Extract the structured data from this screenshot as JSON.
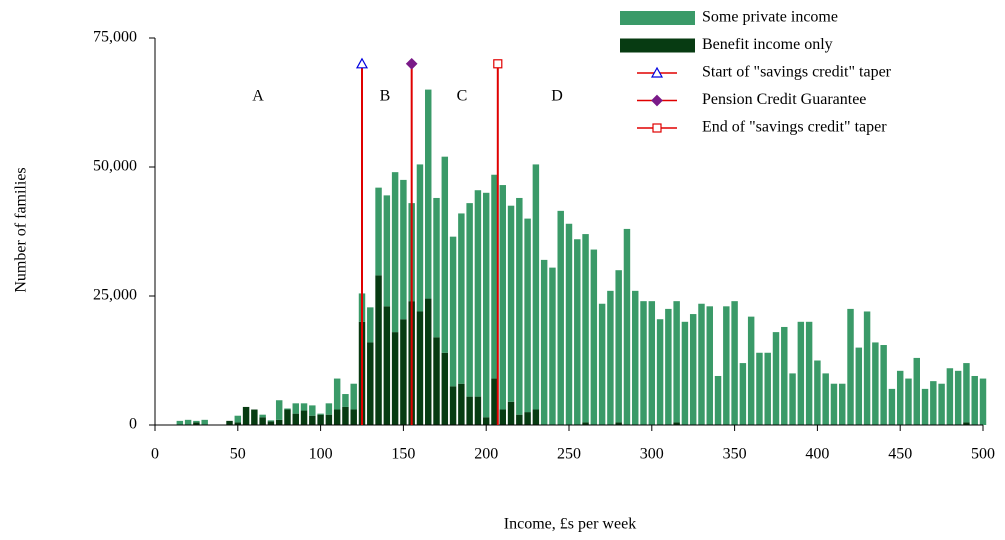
{
  "chart_data": {
    "type": "bar",
    "stacked": true,
    "x_label": "Income, £s per week",
    "y_label": "Number of families",
    "x": [
      15,
      20,
      25,
      30,
      35,
      40,
      45,
      50,
      55,
      60,
      65,
      70,
      75,
      80,
      85,
      90,
      95,
      100,
      105,
      110,
      115,
      120,
      125,
      130,
      135,
      140,
      145,
      150,
      155,
      160,
      165,
      170,
      175,
      180,
      185,
      190,
      195,
      200,
      205,
      210,
      215,
      220,
      225,
      230,
      235,
      240,
      245,
      250,
      255,
      260,
      265,
      270,
      275,
      280,
      285,
      290,
      295,
      300,
      305,
      310,
      315,
      320,
      325,
      330,
      335,
      340,
      345,
      350,
      355,
      360,
      365,
      370,
      375,
      380,
      385,
      390,
      395,
      400,
      405,
      410,
      415,
      420,
      425,
      430,
      435,
      440,
      445,
      450,
      455,
      460,
      465,
      470,
      475,
      480,
      485,
      490,
      495,
      500
    ],
    "series": [
      {
        "name": "Benefit income only",
        "color": "#073b12",
        "values": [
          0,
          0,
          500,
          0,
          0,
          0,
          800,
          500,
          3500,
          3000,
          1500,
          700,
          1000,
          3000,
          2200,
          2800,
          1800,
          2000,
          2000,
          3000,
          3500,
          3000,
          20000,
          16000,
          29000,
          23000,
          18000,
          20500,
          24000,
          22000,
          24500,
          17000,
          14000,
          7500,
          8000,
          5500,
          5500,
          1500,
          9000,
          3000,
          4500,
          2000,
          2500,
          3000,
          0,
          0,
          0,
          0,
          0,
          500,
          0,
          0,
          0,
          500,
          0,
          0,
          0,
          0,
          0,
          0,
          500,
          0,
          0,
          0,
          0,
          0,
          0,
          0,
          0,
          0,
          0,
          0,
          0,
          0,
          0,
          0,
          0,
          0,
          0,
          0,
          0,
          0,
          0,
          0,
          0,
          0,
          0,
          0,
          0,
          0,
          0,
          0,
          0,
          0,
          0,
          500,
          0,
          0
        ]
      },
      {
        "name": "Some private income",
        "color": "#3a9a68",
        "values": [
          800,
          1000,
          300,
          1000,
          0,
          0,
          0,
          1300,
          0,
          0,
          500,
          200,
          3800,
          200,
          2000,
          1400,
          2000,
          200,
          2200,
          6000,
          2500,
          5000,
          5500,
          6800,
          17000,
          21500,
          31000,
          27000,
          19000,
          28500,
          40500,
          27000,
          38000,
          29000,
          33000,
          37500,
          40000,
          43500,
          39500,
          43500,
          38000,
          42000,
          37500,
          47500,
          32000,
          30500,
          41500,
          39000,
          36000,
          36500,
          34000,
          23500,
          26000,
          29500,
          38000,
          26000,
          24000,
          24000,
          20500,
          22500,
          23500,
          20000,
          21500,
          23500,
          23000,
          9500,
          23000,
          24000,
          12000,
          21000,
          14000,
          14000,
          18000,
          19000,
          10000,
          20000,
          20000,
          12500,
          10000,
          8000,
          8000,
          22500,
          15000,
          22000,
          16000,
          15500,
          7000,
          10500,
          9000,
          13000,
          7000,
          8500,
          8000,
          11000,
          10500,
          11500,
          9500,
          9000
        ]
      }
    ],
    "markers": [
      {
        "name": "Start of \"savings credit\" taper",
        "color": "#e00000",
        "marker": "triangle",
        "marker_color": "#0000e0",
        "x": 125,
        "value": 70000
      },
      {
        "name": "Pension Credit Guarantee",
        "color": "#e00000",
        "marker": "diamond",
        "marker_color": "#7a1a88",
        "x": 155,
        "value": 70000
      },
      {
        "name": "End of \"savings credit\" taper",
        "color": "#e00000",
        "marker": "square",
        "marker_color": "#e00000",
        "x": 207,
        "value": 70000
      }
    ],
    "annotations": [
      "A",
      "B",
      "C",
      "D"
    ],
    "xlim": [
      0,
      500
    ],
    "xticks": [
      0,
      50,
      100,
      150,
      200,
      250,
      300,
      350,
      400,
      450,
      500
    ],
    "ylim": [
      0,
      75000
    ],
    "yticks": [
      0,
      {
        "value": 25000,
        "label": "25,000"
      },
      {
        "value": 50000,
        "label": "50,000"
      },
      {
        "value": 75000,
        "label": "75,000"
      }
    ]
  }
}
